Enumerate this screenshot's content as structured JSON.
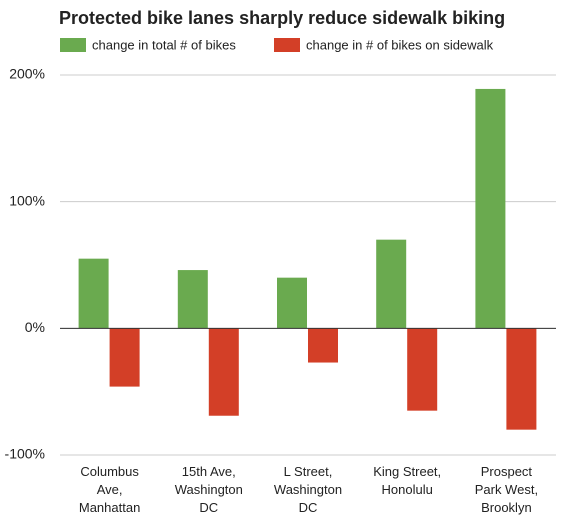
{
  "chart_data": {
    "type": "bar",
    "title": "Protected bike lanes sharply reduce sidewalk biking",
    "categories": [
      "Columbus\nAve,\nManhattan",
      "15th Ave,\nWashington\nDC",
      "L Street,\nWashington\nDC",
      "King Street,\nHonolulu",
      "Prospect\nPark West,\nBrooklyn"
    ],
    "series": [
      {
        "name": "change in total # of bikes",
        "color": "#6aaa4f",
        "values": [
          55,
          46,
          40,
          70,
          189
        ]
      },
      {
        "name": "change in # of bikes on sidewalk",
        "color": "#d33f27",
        "values": [
          -46,
          -69,
          -27,
          -65,
          -80
        ]
      }
    ],
    "ylim": [
      -100,
      200
    ],
    "yticks": [
      {
        "value": -100,
        "label": "-100%"
      },
      {
        "value": 0,
        "label": "0%"
      },
      {
        "value": 100,
        "label": "100%"
      },
      {
        "value": 200,
        "label": "200%"
      }
    ],
    "grid": true
  }
}
